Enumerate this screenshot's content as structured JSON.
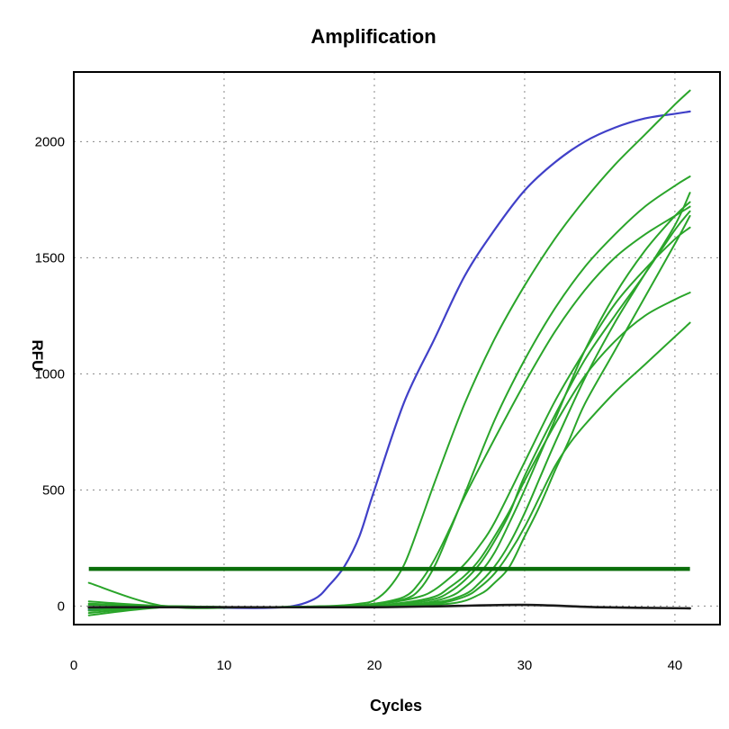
{
  "chart_data": {
    "type": "line",
    "title": "Amplification",
    "xlabel": "Cycles",
    "ylabel": "RFU",
    "xlim": [
      0,
      43
    ],
    "ylim": [
      -80,
      2300
    ],
    "x_ticks": [
      0,
      10,
      20,
      30,
      40
    ],
    "y_ticks": [
      0,
      500,
      1000,
      1500,
      2000
    ],
    "grid": true,
    "colors": {
      "blue": "#4040c8",
      "green": "#2aa52a",
      "threshold": "#0a6e0a",
      "baseline": "#1a1a1a"
    },
    "threshold": 160,
    "series": [
      {
        "x": [
          1,
          6,
          10,
          14,
          16,
          17,
          18,
          19,
          20,
          22,
          24,
          26,
          28,
          30,
          32,
          34,
          36,
          38,
          40,
          41
        ],
        "y": [
          -15,
          -5,
          -8,
          -5,
          30,
          90,
          170,
          300,
          500,
          880,
          1150,
          1420,
          1620,
          1790,
          1910,
          2000,
          2060,
          2100,
          2120,
          2130
        ],
        "color": "blue"
      },
      {
        "x": [
          1,
          6,
          12,
          17,
          19,
          20,
          21,
          22,
          23,
          24,
          26,
          28,
          30,
          32,
          34,
          36,
          38,
          40,
          41
        ],
        "y": [
          10,
          0,
          -5,
          0,
          10,
          25,
          80,
          180,
          350,
          530,
          870,
          1150,
          1380,
          1580,
          1750,
          1900,
          2030,
          2160,
          2220
        ],
        "color": "green"
      },
      {
        "x": [
          1,
          6,
          12,
          18,
          20,
          22,
          23,
          24,
          25,
          26,
          28,
          30,
          32,
          34,
          36,
          38,
          40,
          41
        ],
        "y": [
          -30,
          -5,
          -5,
          0,
          10,
          30,
          70,
          170,
          320,
          480,
          800,
          1060,
          1280,
          1460,
          1600,
          1720,
          1810,
          1850
        ],
        "color": "green"
      },
      {
        "x": [
          1,
          6,
          12,
          18,
          20,
          22,
          23,
          24,
          25,
          26,
          28,
          30,
          32,
          34,
          36,
          38,
          40,
          41
        ],
        "y": [
          5,
          0,
          -5,
          0,
          10,
          40,
          100,
          200,
          330,
          470,
          720,
          960,
          1180,
          1360,
          1500,
          1600,
          1680,
          1720
        ],
        "color": "green"
      },
      {
        "x": [
          1,
          6,
          12,
          18,
          21,
          23,
          24,
          25,
          26,
          27,
          28,
          30,
          32,
          34,
          36,
          38,
          40,
          41
        ],
        "y": [
          -20,
          -5,
          -5,
          0,
          15,
          40,
          70,
          120,
          180,
          260,
          360,
          620,
          880,
          1100,
          1300,
          1450,
          1580,
          1630
        ],
        "color": "green"
      },
      {
        "x": [
          1,
          6,
          12,
          19,
          22,
          24,
          25,
          26,
          27,
          28,
          29,
          30,
          32,
          34,
          36,
          38,
          40,
          41
        ],
        "y": [
          100,
          0,
          -5,
          0,
          15,
          40,
          80,
          130,
          200,
          300,
          410,
          540,
          780,
          990,
          1140,
          1250,
          1320,
          1350
        ],
        "color": "green"
      },
      {
        "x": [
          1,
          6,
          12,
          19,
          22,
          24,
          25,
          26,
          27,
          28,
          29,
          30,
          32,
          34,
          36,
          38,
          40,
          41
        ],
        "y": [
          -10,
          -5,
          -5,
          0,
          10,
          30,
          60,
          110,
          180,
          280,
          400,
          560,
          820,
          1060,
          1250,
          1430,
          1620,
          1700
        ],
        "color": "green"
      },
      {
        "x": [
          1,
          6,
          12,
          20,
          23,
          25,
          26,
          27,
          28,
          29,
          30,
          32,
          34,
          36,
          38,
          40,
          41
        ],
        "y": [
          20,
          0,
          -5,
          0,
          10,
          40,
          80,
          140,
          230,
          360,
          500,
          800,
          1100,
          1340,
          1530,
          1680,
          1740
        ],
        "color": "green"
      },
      {
        "x": [
          1,
          6,
          12,
          20,
          24,
          26,
          27,
          28,
          29,
          30,
          31,
          32,
          34,
          36,
          38,
          40,
          41
        ],
        "y": [
          -40,
          -5,
          -5,
          0,
          15,
          50,
          100,
          170,
          270,
          400,
          550,
          700,
          980,
          1220,
          1430,
          1640,
          1780
        ],
        "color": "green"
      },
      {
        "x": [
          1,
          6,
          12,
          20,
          24,
          26,
          27,
          28,
          29,
          30,
          31,
          32,
          33,
          34,
          36,
          38,
          40,
          41
        ],
        "y": [
          -10,
          -5,
          -5,
          0,
          10,
          40,
          80,
          140,
          230,
          340,
          470,
          600,
          700,
          780,
          920,
          1040,
          1160,
          1220
        ],
        "color": "green"
      },
      {
        "x": [
          1,
          6,
          12,
          20,
          25,
          27,
          28,
          29,
          30,
          31,
          32,
          33,
          34,
          36,
          38,
          40,
          41
        ],
        "y": [
          -20,
          -5,
          -5,
          0,
          10,
          50,
          100,
          170,
          300,
          430,
          580,
          720,
          870,
          1100,
          1330,
          1560,
          1680
        ],
        "color": "green"
      },
      {
        "x": [
          1,
          10,
          20,
          25,
          30,
          35,
          41
        ],
        "y": [
          -5,
          -5,
          -5,
          0,
          5,
          -5,
          -10
        ],
        "color": "baseline"
      }
    ]
  }
}
